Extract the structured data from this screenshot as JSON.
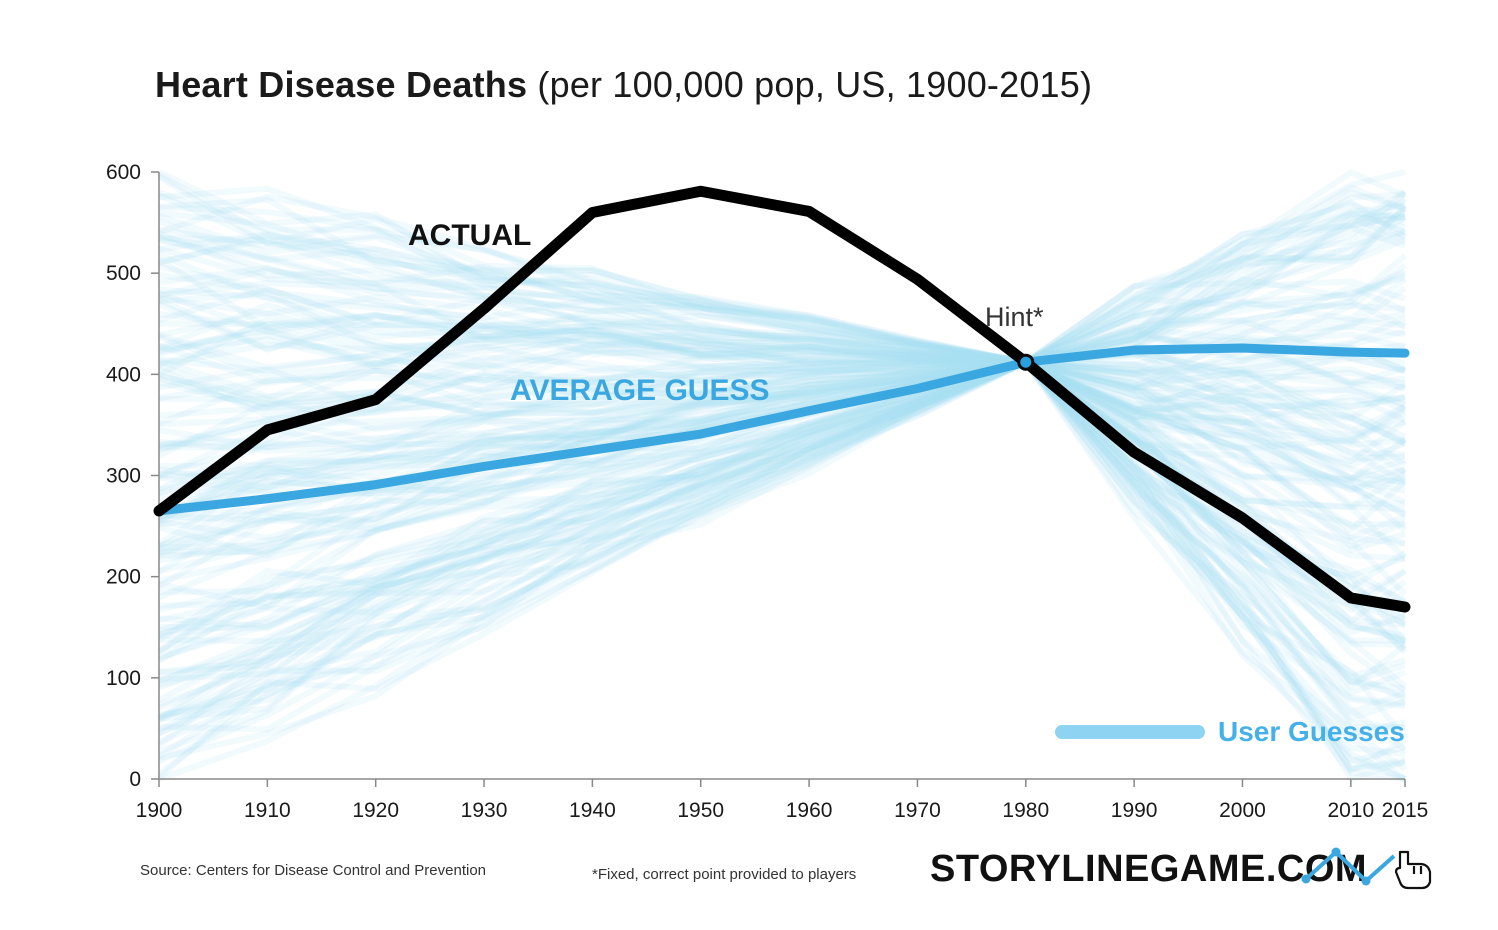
{
  "title": {
    "bold": "Heart Disease Deaths",
    "light": "(per 100,000 pop, US, 1900-2015)"
  },
  "chart_data": {
    "type": "line",
    "title": "Heart Disease Deaths (per 100,000 pop, US, 1900-2015)",
    "x": [
      1900,
      1910,
      1920,
      1930,
      1940,
      1950,
      1960,
      1970,
      1980,
      1990,
      2000,
      2010,
      2015
    ],
    "x_tick_labels": [
      "1900",
      "1910",
      "1920",
      "1930",
      "1940",
      "1950",
      "1960",
      "1970",
      "1980",
      "1990",
      "2000",
      "2010",
      "2015"
    ],
    "y_tick_values": [
      0,
      100,
      200,
      300,
      400,
      500,
      600
    ],
    "y_tick_labels": [
      "0",
      "100",
      "200",
      "300",
      "400",
      "500",
      "600"
    ],
    "ylim": [
      0,
      600
    ],
    "series": [
      {
        "name": "ACTUAL",
        "color": "#000000",
        "values": [
          265,
          345,
          375,
          465,
          560,
          581,
          561,
          494,
          412,
          323,
          258,
          179,
          170
        ]
      },
      {
        "name": "AVERAGE GUESS",
        "color": "#3aa7e1",
        "values": [
          265,
          277,
          291,
          309,
          325,
          341,
          364,
          386,
          412,
          424,
          426,
          422,
          421
        ]
      }
    ],
    "hint": {
      "label": "Hint*",
      "x": 1980,
      "y": 412
    },
    "legend": {
      "label": "User Guesses",
      "color": "#8fd3f2",
      "position": "bottom-right"
    }
  },
  "footer": {
    "source": "Source: Centers for Disease Control and Prevention",
    "footnote": "*Fixed, correct point provided to players",
    "brand": "STORYLINEGAME.COM"
  },
  "colors": {
    "actual": "#000000",
    "average": "#3aa7e1",
    "guesses": "#a9def5",
    "legend": "#8fd3f2"
  }
}
